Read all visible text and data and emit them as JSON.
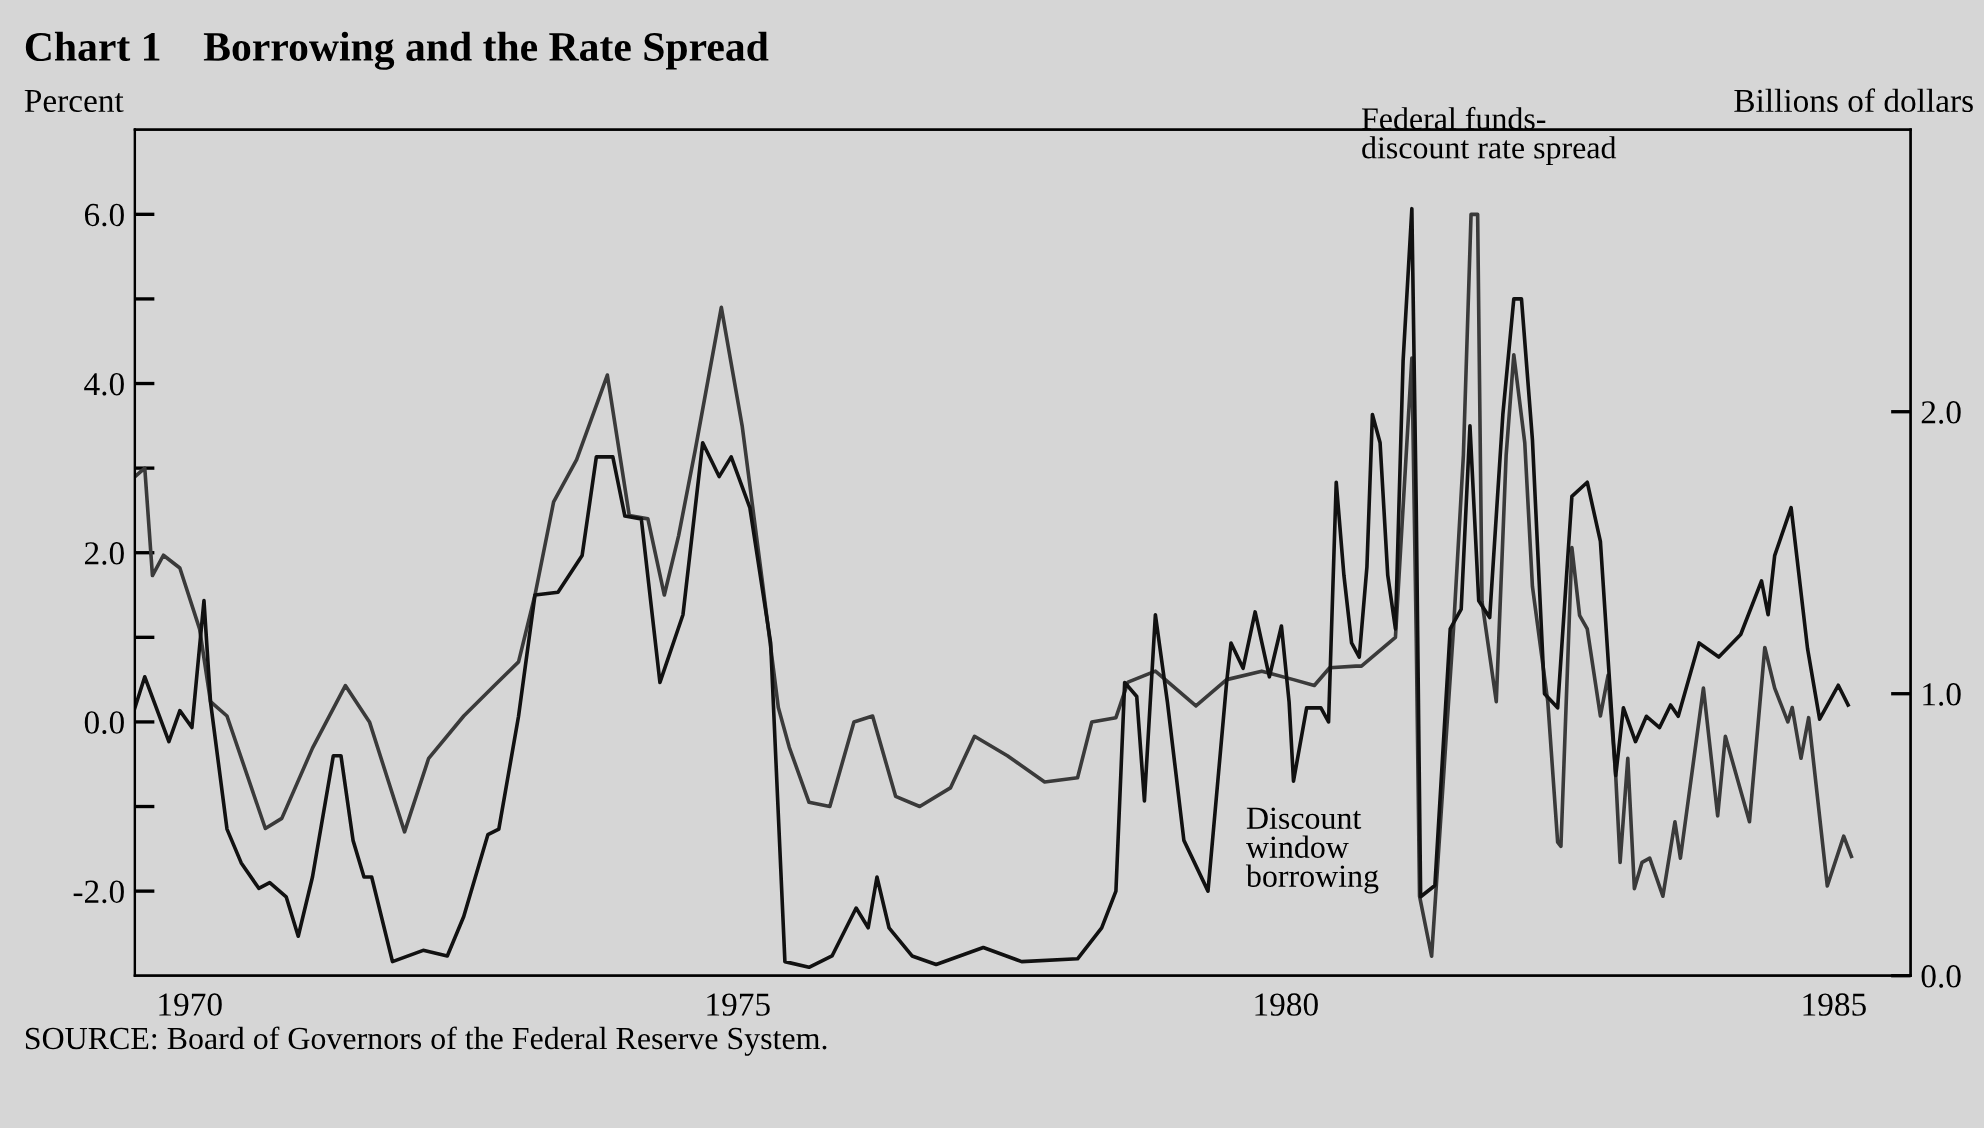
{
  "chart_data": {
    "type": "line",
    "title": "Chart 1    Borrowing and the Rate Spread",
    "ylabel": "Percent",
    "y2label": "Billions of dollars",
    "annotations": [
      "Federal funds-\ndiscount rate spread",
      "Discount\nwindow\nborrowing",
      "SOURCE: Board of Governors of the Federal Reserve System."
    ],
    "xlim": [
      1969.5,
      1985.7
    ],
    "xticks": [
      1970,
      1975,
      1980,
      1985
    ],
    "ylim": [
      -3,
      7
    ],
    "yticks": [
      {
        "value": -2,
        "label": "-2.0"
      },
      {
        "value": -1,
        "label": null
      },
      {
        "value": 0,
        "label": "0.0"
      },
      {
        "value": 1,
        "label": null
      },
      {
        "value": 2,
        "label": "2.0"
      },
      {
        "value": 3,
        "label": null
      },
      {
        "value": 4,
        "label": "4.0"
      },
      {
        "value": 5,
        "label": null
      },
      {
        "value": 6,
        "label": "6.0"
      }
    ],
    "y2lim": [
      0,
      3
    ],
    "y2ticks": [
      {
        "value": 0,
        "label": "0.0"
      },
      {
        "value": 1,
        "label": "1.0"
      },
      {
        "value": 2,
        "label": "2.0"
      }
    ],
    "grid": false,
    "legend": false,
    "marker": "none",
    "line_style": "solid",
    "series": [
      {
        "color": "#3a3a3a",
        "x": [
          1969.5,
          1969.59,
          1969.66,
          1969.76,
          1969.91,
          1970.09,
          1970.19,
          1970.34,
          1970.69,
          1970.84,
          1971.12,
          1971.42,
          1971.64,
          1971.96,
          1972.18,
          1972.5,
          1972.78,
          1973.0,
          1973.15,
          1973.32,
          1973.53,
          1973.81,
          1974.01,
          1974.18,
          1974.33,
          1974.46,
          1974.61,
          1974.85,
          1975.04,
          1975.22,
          1975.37,
          1975.47,
          1975.65,
          1975.84,
          1976.06,
          1976.23,
          1976.44,
          1976.66,
          1976.94,
          1977.16,
          1977.46,
          1977.8,
          1978.1,
          1978.23,
          1978.45,
          1978.56,
          1978.81,
          1979.18,
          1979.46,
          1979.78,
          1980.07,
          1980.26,
          1980.4,
          1980.64,
          1980.69,
          1981.0,
          1981.15,
          1981.19,
          1981.22,
          1981.33,
          1981.46,
          1981.53,
          1981.62,
          1981.69,
          1981.75,
          1981.79,
          1981.92,
          1982.01,
          1982.08,
          1982.18,
          1982.25,
          1982.39,
          1982.48,
          1982.51,
          1982.61,
          1982.68,
          1982.75,
          1982.87,
          1982.94,
          1983.01,
          1983.05,
          1983.12,
          1983.18,
          1983.25,
          1983.32,
          1983.44,
          1983.55,
          1983.6,
          1983.81,
          1983.94,
          1984.01,
          1984.23,
          1984.37,
          1984.46,
          1984.58,
          1984.62,
          1984.7,
          1984.77,
          1984.94,
          1985.09,
          1985.16
        ],
        "values": [
          2.9,
          3.0,
          1.73,
          1.97,
          1.82,
          1.1,
          0.24,
          0.07,
          -1.26,
          -1.14,
          -0.31,
          0.43,
          0.0,
          -1.3,
          -0.43,
          0.07,
          0.43,
          0.71,
          1.5,
          2.6,
          3.1,
          4.1,
          2.44,
          2.4,
          1.5,
          2.2,
          3.2,
          4.9,
          3.5,
          1.7,
          0.17,
          -0.3,
          -0.95,
          -1.0,
          0.0,
          0.07,
          -0.88,
          -1.0,
          -0.78,
          -0.17,
          -0.4,
          -0.71,
          -0.66,
          0.0,
          0.05,
          0.47,
          0.6,
          0.19,
          0.5,
          0.6,
          0.5,
          0.43,
          0.64,
          0.66,
          0.66,
          1.0,
          4.3,
          1.0,
          -2.06,
          -2.77,
          -0.24,
          1.1,
          3.15,
          6.0,
          6.0,
          1.42,
          0.24,
          3.15,
          4.34,
          3.3,
          1.6,
          0.24,
          -1.42,
          -1.47,
          2.06,
          1.26,
          1.1,
          0.07,
          0.55,
          -0.64,
          -1.66,
          -0.43,
          -1.97,
          -1.66,
          -1.61,
          -2.06,
          -1.18,
          -1.61,
          0.4,
          -1.11,
          -0.17,
          -1.18,
          0.88,
          0.4,
          0.0,
          0.17,
          -0.43,
          0.05,
          -1.94,
          -1.35,
          -1.59
        ]
      },
      {
        "color": "#111111",
        "axis": "y2",
        "x": [
          1969.5,
          1969.59,
          1969.81,
          1969.91,
          1970.02,
          1970.13,
          1970.19,
          1970.34,
          1970.47,
          1970.63,
          1970.73,
          1970.88,
          1970.99,
          1971.12,
          1971.31,
          1971.38,
          1971.49,
          1971.59,
          1971.66,
          1971.85,
          1972.13,
          1972.35,
          1972.5,
          1972.72,
          1972.82,
          1973.0,
          1973.15,
          1973.36,
          1973.58,
          1973.71,
          1973.86,
          1973.97,
          1974.12,
          1974.29,
          1974.5,
          1974.68,
          1974.83,
          1974.94,
          1975.11,
          1975.3,
          1975.43,
          1975.65,
          1975.86,
          1976.08,
          1976.19,
          1976.27,
          1976.38,
          1976.59,
          1976.81,
          1977.24,
          1977.59,
          1978.1,
          1978.32,
          1978.45,
          1978.53,
          1978.64,
          1978.71,
          1978.81,
          1978.92,
          1979.07,
          1979.29,
          1979.46,
          1979.5,
          1979.61,
          1979.72,
          1979.85,
          1979.96,
          1980.03,
          1980.07,
          1980.19,
          1980.32,
          1980.39,
          1980.46,
          1980.53,
          1980.6,
          1980.67,
          1980.74,
          1980.79,
          1980.86,
          1980.93,
          1981.0,
          1981.07,
          1981.15,
          1981.19,
          1981.23,
          1981.36,
          1981.5,
          1981.6,
          1981.68,
          1981.76,
          1981.86,
          1981.98,
          1982.08,
          1982.15,
          1982.25,
          1982.36,
          1982.48,
          1982.61,
          1982.75,
          1982.87,
          1983.01,
          1983.08,
          1983.19,
          1983.29,
          1983.41,
          1983.51,
          1983.58,
          1983.77,
          1983.95,
          1984.15,
          1984.34,
          1984.4,
          1984.46,
          1984.61,
          1984.76,
          1984.87,
          1985.04,
          1985.13
        ],
        "values": [
          0.95,
          1.06,
          0.83,
          0.94,
          0.88,
          1.33,
          0.97,
          0.52,
          0.4,
          0.31,
          0.33,
          0.28,
          0.14,
          0.35,
          0.78,
          0.78,
          0.48,
          0.35,
          0.35,
          0.05,
          0.09,
          0.07,
          0.21,
          0.5,
          0.52,
          0.92,
          1.35,
          1.36,
          1.49,
          1.84,
          1.84,
          1.63,
          1.62,
          1.04,
          1.28,
          1.89,
          1.77,
          1.84,
          1.66,
          1.18,
          0.05,
          0.03,
          0.07,
          0.24,
          0.17,
          0.35,
          0.17,
          0.07,
          0.04,
          0.1,
          0.05,
          0.06,
          0.17,
          0.3,
          1.04,
          0.99,
          0.62,
          1.28,
          0.97,
          0.48,
          0.3,
          1.04,
          1.18,
          1.09,
          1.29,
          1.06,
          1.24,
          0.97,
          0.69,
          0.95,
          0.95,
          0.9,
          1.75,
          1.42,
          1.18,
          1.13,
          1.45,
          1.99,
          1.89,
          1.42,
          1.23,
          2.18,
          2.72,
          1.66,
          0.28,
          0.32,
          1.23,
          1.3,
          1.95,
          1.33,
          1.27,
          1.99,
          2.4,
          2.4,
          1.9,
          1.0,
          0.95,
          1.7,
          1.75,
          1.54,
          0.71,
          0.95,
          0.83,
          0.92,
          0.88,
          0.96,
          0.92,
          1.18,
          1.13,
          1.21,
          1.4,
          1.28,
          1.49,
          1.66,
          1.16,
          0.91,
          1.03,
          0.96
        ]
      }
    ]
  }
}
